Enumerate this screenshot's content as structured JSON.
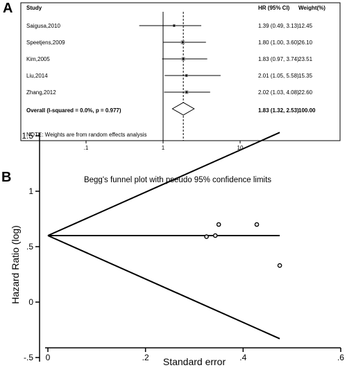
{
  "panel_a": {
    "letter": "A",
    "headers": {
      "study": "Study",
      "hr": "HR (95% CI)",
      "weight": "Weight(%)"
    },
    "overall": {
      "label": "Overall  (I-squared = 0.0%, p = 0.977)",
      "hr_text": "1.83 (1.32, 2.53)",
      "weight_text": "100.00"
    },
    "note": "NOTE: Weights are from random effects analysis",
    "x_ticks": [
      {
        "value": 0.1,
        "label": ".1"
      },
      {
        "value": 1,
        "label": "1"
      },
      {
        "value": 10,
        "label": "10"
      }
    ]
  },
  "panel_b": {
    "letter": "B",
    "title": "Begg's funnel plot with pseudo 95% confidence limits",
    "xlabel": "Standard error",
    "ylabel": "Hazard Ratio (log)",
    "x_ticks": [
      {
        "value": 0,
        "label": "0"
      },
      {
        "value": 0.2,
        "label": ".2"
      },
      {
        "value": 0.4,
        "label": ".4"
      },
      {
        "value": 0.6,
        "label": ".6"
      }
    ],
    "y_ticks": [
      {
        "value": -0.5,
        "label": "-.5"
      },
      {
        "value": 0,
        "label": "0"
      },
      {
        "value": 0.5,
        "label": ".5"
      },
      {
        "value": 1,
        "label": "1"
      },
      {
        "value": 1.5,
        "label": "1.5"
      }
    ]
  },
  "chart_data": [
    {
      "type": "forest",
      "title": "",
      "columns": [
        "Study",
        "HR (95% CI)",
        "Weight(%)"
      ],
      "x_scale": "log",
      "reference_line": 1,
      "pooled_line": 1.83,
      "studies": [
        {
          "name": "Saigusa,2010",
          "hr": 1.39,
          "lower": 0.49,
          "upper": 3.13,
          "weight": 12.45,
          "hr_text": "1.39 (0.49, 3.13)",
          "weight_text": "12.45"
        },
        {
          "name": "Speetjens,2009",
          "hr": 1.8,
          "lower": 1.0,
          "upper": 3.6,
          "weight": 26.1,
          "hr_text": "1.80 (1.00, 3.60)",
          "weight_text": "26.10"
        },
        {
          "name": "Kim,2005",
          "hr": 1.83,
          "lower": 0.97,
          "upper": 3.74,
          "weight": 23.51,
          "hr_text": "1.83 (0.97, 3.74)",
          "weight_text": "23.51"
        },
        {
          "name": "Liu,2014",
          "hr": 2.01,
          "lower": 1.05,
          "upper": 5.58,
          "weight": 15.35,
          "hr_text": "2.01 (1.05, 5.58)",
          "weight_text": "15.35"
        },
        {
          "name": "Zhang,2012",
          "hr": 2.02,
          "lower": 1.03,
          "upper": 4.08,
          "weight": 22.6,
          "hr_text": "2.02 (1.03, 4.08)",
          "weight_text": "22.60"
        }
      ],
      "overall": {
        "hr": 1.83,
        "lower": 1.32,
        "upper": 2.53
      }
    },
    {
      "type": "scatter",
      "title": "Begg's funnel plot with pseudo 95% confidence limits",
      "xlabel": "Standard error",
      "ylabel": "Hazard Ratio (log)",
      "xlim": [
        0,
        0.6
      ],
      "ylim": [
        -0.5,
        1.5
      ],
      "grid": false,
      "pooled_estimate": 0.6,
      "funnel_upper": {
        "x": [
          0,
          0.475
        ],
        "y": [
          0.6,
          1.53
        ]
      },
      "funnel_lower": {
        "x": [
          0,
          0.475
        ],
        "y": [
          0.6,
          -0.33
        ]
      },
      "points": [
        {
          "x": 0.325,
          "y": 0.59
        },
        {
          "x": 0.343,
          "y": 0.6
        },
        {
          "x": 0.35,
          "y": 0.7
        },
        {
          "x": 0.428,
          "y": 0.7
        },
        {
          "x": 0.475,
          "y": 0.33
        }
      ]
    }
  ]
}
